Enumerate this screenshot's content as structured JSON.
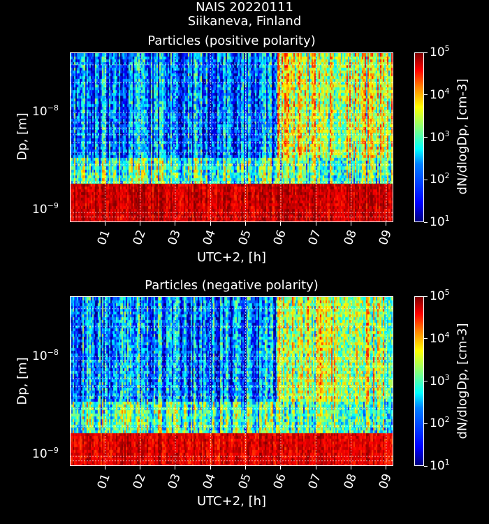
{
  "figure": {
    "title_line1": "NAIS 20220111",
    "title_line2": "Siikaneva, Finland"
  },
  "panels": [
    {
      "title": "Particles (positive polarity)",
      "ylabel": "Dp, [m]",
      "xlabel": "UTC+2, [h]",
      "cbar_label": "dN/dlogDp, [cm-3]"
    },
    {
      "title": "Particles (negative polarity)",
      "ylabel": "Dp, [m]",
      "xlabel": "UTC+2, [h]",
      "cbar_label": "dN/dlogDp, [cm-3]"
    }
  ],
  "chart_data": [
    {
      "type": "heatmap",
      "title": "Particles (positive polarity)",
      "xlabel": "UTC+2, [h]",
      "ylabel": "Dp, [m]",
      "xlim": [
        0.0,
        9.2
      ],
      "ylim": [
        8e-10,
        4e-08
      ],
      "yscale": "log",
      "x_ticks": [
        "01",
        "02",
        "03",
        "04",
        "05",
        "06",
        "07",
        "08",
        "09"
      ],
      "y_ticks": [
        {
          "value": 1e-08,
          "label": "10",
          "exp": "−8"
        },
        {
          "value": 1e-09,
          "label": "10",
          "exp": "−9"
        }
      ],
      "colorbar": {
        "label": "dN/dlogDp, [cm-3]",
        "scale": "log",
        "range": [
          10,
          100000
        ],
        "ticks": [
          "1",
          "2",
          "3",
          "4",
          "5"
        ],
        "colormap": "jet"
      },
      "grid": true,
      "description_bands": [
        {
          "dp_range": [
            8e-10,
            2e-09
          ],
          "time_range": [
            0.0,
            9.2
          ],
          "level_log10": 4.7
        },
        {
          "dp_range": [
            2e-09,
            3.5e-09
          ],
          "time_range": [
            0.0,
            9.2
          ],
          "level_log10": 2.8
        },
        {
          "dp_range": [
            3.5e-09,
            4e-08
          ],
          "time_range": [
            0.0,
            5.9
          ],
          "level_log10": 2.0
        },
        {
          "dp_range": [
            3.5e-09,
            4e-08
          ],
          "time_range": [
            5.9,
            9.2
          ],
          "level_log10": 3.3
        }
      ]
    },
    {
      "type": "heatmap",
      "title": "Particles (negative polarity)",
      "xlabel": "UTC+2, [h]",
      "ylabel": "Dp, [m]",
      "xlim": [
        0.0,
        9.2
      ],
      "ylim": [
        8e-10,
        4e-08
      ],
      "yscale": "log",
      "x_ticks": [
        "01",
        "02",
        "03",
        "04",
        "05",
        "06",
        "07",
        "08",
        "09"
      ],
      "y_ticks": [
        {
          "value": 1e-08,
          "label": "10",
          "exp": "−8"
        },
        {
          "value": 1e-09,
          "label": "10",
          "exp": "−9"
        }
      ],
      "colorbar": {
        "label": "dN/dlogDp, [cm-3]",
        "scale": "log",
        "range": [
          10,
          100000
        ],
        "ticks": [
          "1",
          "2",
          "3",
          "4",
          "5"
        ],
        "colormap": "jet"
      },
      "grid": true,
      "description_bands": [
        {
          "dp_range": [
            8e-10,
            1.8e-09
          ],
          "time_range": [
            0.0,
            9.2
          ],
          "level_log10": 4.6
        },
        {
          "dp_range": [
            1.8e-09,
            3.5e-09
          ],
          "time_range": [
            0.0,
            9.2
          ],
          "level_log10": 2.8
        },
        {
          "dp_range": [
            3.5e-09,
            4e-08
          ],
          "time_range": [
            0.0,
            5.9
          ],
          "level_log10": 2.0
        },
        {
          "dp_range": [
            3.5e-09,
            4e-08
          ],
          "time_range": [
            5.9,
            9.2
          ],
          "level_log10": 3.2
        }
      ]
    }
  ]
}
